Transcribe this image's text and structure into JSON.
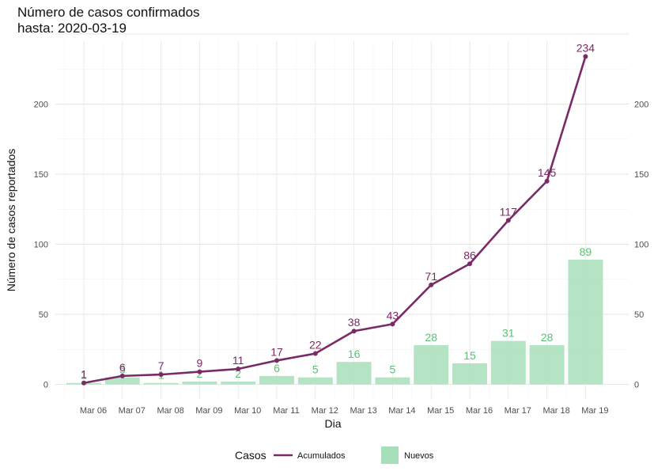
{
  "title_line1": "Número de casos confirmados",
  "title_line2": "hasta: 2020-03-19",
  "colors": {
    "acumulados": "#7b2a66",
    "nuevos": "#a8dfbb",
    "nuevos_label": "#5cbf77"
  },
  "chart_data": {
    "type": "bar",
    "title": "Número de casos confirmados",
    "subtitle": "hasta: 2020-03-19",
    "xlabel": "Dia",
    "ylabel": "Número de casos reportados",
    "categories": [
      "Mar 06",
      "Mar 07",
      "Mar 08",
      "Mar 09",
      "Mar 10",
      "Mar 11",
      "Mar 12",
      "Mar 13",
      "Mar 14",
      "Mar 15",
      "Mar 16",
      "Mar 17",
      "Mar 18",
      "Mar 19"
    ],
    "y_ticks": [
      "0",
      "50",
      "100",
      "150",
      "200"
    ],
    "ylim": [
      0,
      250
    ],
    "grid": true,
    "legend_title": "Casos",
    "legend_position": "bottom",
    "series": [
      {
        "name": "Acumulados",
        "type": "line",
        "values": [
          1,
          6,
          7,
          9,
          11,
          17,
          22,
          38,
          43,
          71,
          86,
          117,
          145,
          234
        ]
      },
      {
        "name": "Nuevos",
        "type": "bar",
        "values": [
          1,
          5,
          1,
          2,
          2,
          6,
          5,
          16,
          5,
          28,
          15,
          31,
          28,
          89
        ]
      }
    ]
  }
}
